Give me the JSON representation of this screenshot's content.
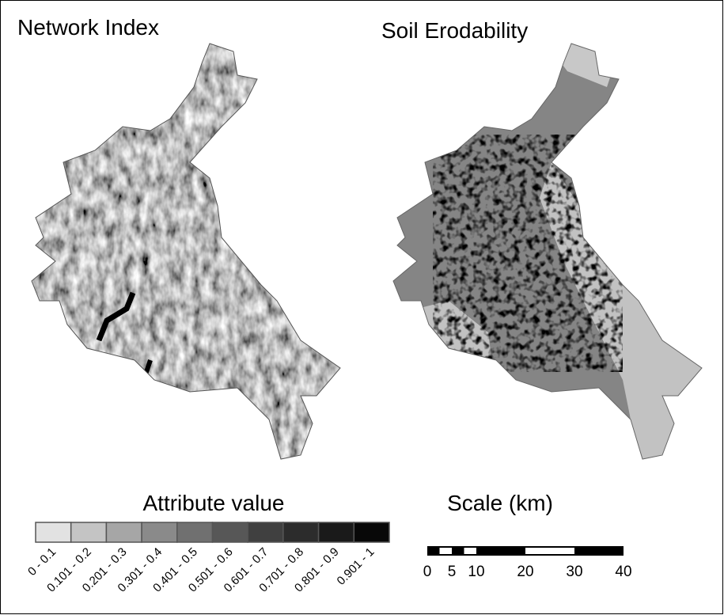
{
  "panels": [
    {
      "title": "Network Index"
    },
    {
      "title": "Soil Erodability"
    }
  ],
  "legend": {
    "title": "Attribute value",
    "classes": [
      {
        "label": "0 - 0.1",
        "color": "#e2e2e2"
      },
      {
        "label": "0.101 - 0.2",
        "color": "#c4c4c4"
      },
      {
        "label": "0.201 - 0.3",
        "color": "#a6a6a6"
      },
      {
        "label": "0.301 - 0.4",
        "color": "#8a8a8a"
      },
      {
        "label": "0.401 - 0.5",
        "color": "#707070"
      },
      {
        "label": "0.501 - 0.6",
        "color": "#575757"
      },
      {
        "label": "0.601 - 0.7",
        "color": "#404040"
      },
      {
        "label": "0.701 - 0.8",
        "color": "#2c2c2c"
      },
      {
        "label": "0.801 - 0.9",
        "color": "#1a1a1a"
      },
      {
        "label": "0.901 - 1",
        "color": "#080808"
      }
    ]
  },
  "scale": {
    "title": "Scale (km)",
    "ticks": [
      0,
      5,
      10,
      20,
      30,
      40
    ]
  }
}
